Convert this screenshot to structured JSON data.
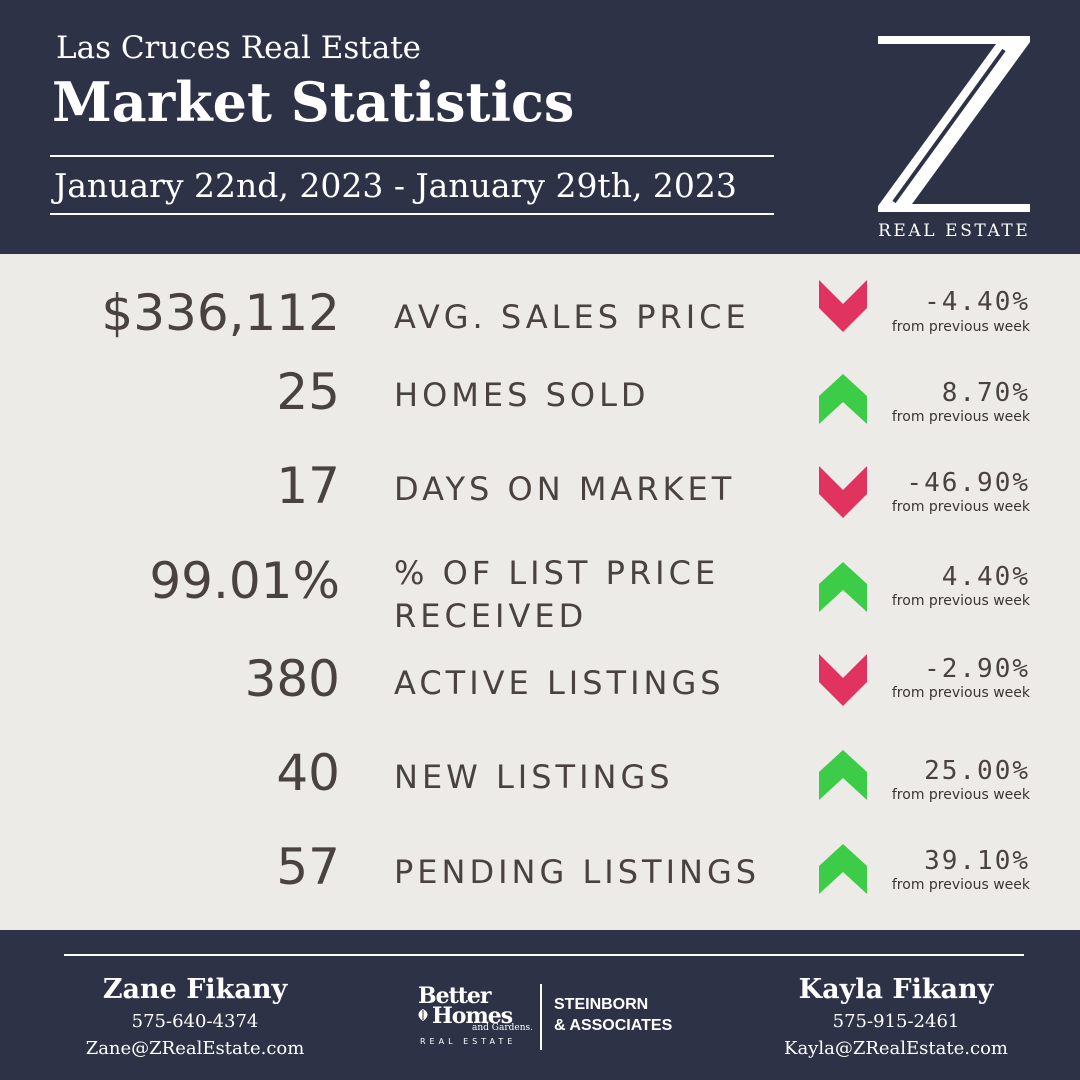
{
  "header": {
    "subtitle": "Las Cruces Real Estate",
    "title": "Market Statistics",
    "date_range": "January 22nd, 2023 - January 29th, 2023",
    "logo_letter": "Z",
    "logo_text": "REAL ESTATE"
  },
  "colors": {
    "navy": "#2e3247",
    "paper": "#ecebe8",
    "text": "#4a423e",
    "down": "#e0335f",
    "up": "#3dcc47"
  },
  "stats": [
    {
      "value": "$336,112",
      "label": "AVG. SALES PRICE",
      "change": "-4.40%",
      "note": "from previous week",
      "direction": "down"
    },
    {
      "value": "25",
      "label": "HOMES SOLD",
      "change": "8.70%",
      "note": "from previous week",
      "direction": "up"
    },
    {
      "value": "17",
      "label": "DAYS ON MARKET",
      "change": "-46.90%",
      "note": "from previous week",
      "direction": "down"
    },
    {
      "value": "99.01%",
      "label_line1": "% OF LIST PRICE",
      "label_line2": "RECEIVED",
      "change": "4.40%",
      "note": "from previous week",
      "direction": "up"
    },
    {
      "value": "380",
      "label": "ACTIVE LISTINGS",
      "change": "-2.90%",
      "note": "from previous week",
      "direction": "down"
    },
    {
      "value": "40",
      "label": "NEW LISTINGS",
      "change": "25.00%",
      "note": "from previous week",
      "direction": "up"
    },
    {
      "value": "57",
      "label": "PENDING LISTINGS",
      "change": "39.10%",
      "note": "from previous week",
      "direction": "up"
    }
  ],
  "footer": {
    "agent_left": {
      "name": "Zane Fikany",
      "phone": "575-640-4374",
      "email": "Zane@ZRealEstate.com"
    },
    "agent_right": {
      "name": "Kayla Fikany",
      "phone": "575-915-2461",
      "email": "Kayla@ZRealEstate.com"
    },
    "bh_logo": {
      "line1": "Better",
      "line2": "Homes",
      "line3": "and Gardens.",
      "line4": "REAL ESTATE"
    },
    "brokerage": {
      "line1": "STEINBORN",
      "line2": "& ASSOCIATES"
    }
  }
}
